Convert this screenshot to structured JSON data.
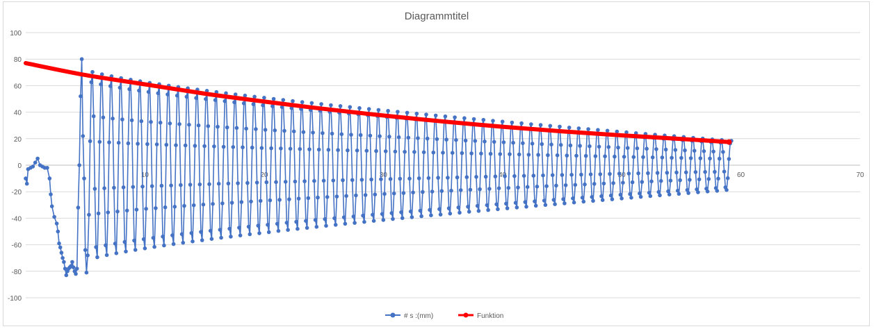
{
  "chart_data": {
    "type": "scatter",
    "title": "Diagrammtitel",
    "xlabel": "",
    "ylabel": "",
    "xlim": [
      0,
      70
    ],
    "ylim": [
      -100,
      100
    ],
    "x_ticks": [
      "10",
      "20",
      "30",
      "40",
      "50",
      "60",
      "70"
    ],
    "y_ticks": [
      "100",
      "80",
      "60",
      "40",
      "20",
      "0",
      "-20",
      "-40",
      "-60",
      "-80",
      "-100"
    ],
    "grid": true,
    "legend_position": "bottom",
    "series": [
      {
        "name": "# s :(mm)",
        "color": "#4472c4",
        "marker": "circle",
        "envelope": {
          "start_x": 4.6,
          "end_x": 59.2,
          "amp_start": 76,
          "amp_end": 19,
          "period": 0.8
        },
        "values_early": [
          [
            0.0,
            -10
          ],
          [
            0.1,
            -14
          ],
          [
            0.2,
            -3
          ],
          [
            0.4,
            -2
          ],
          [
            0.6,
            -1
          ],
          [
            0.8,
            2
          ],
          [
            1.0,
            5
          ],
          [
            1.2,
            0
          ],
          [
            1.4,
            -1
          ],
          [
            1.6,
            -2
          ],
          [
            1.8,
            -2
          ],
          [
            2.0,
            -10
          ],
          [
            2.1,
            -22
          ],
          [
            2.2,
            -31
          ],
          [
            2.4,
            -39
          ],
          [
            2.6,
            -44
          ],
          [
            2.7,
            -50
          ],
          [
            2.8,
            -59
          ],
          [
            2.9,
            -62
          ],
          [
            3.0,
            -66
          ],
          [
            3.1,
            -70
          ],
          [
            3.2,
            -73
          ],
          [
            3.3,
            -78
          ],
          [
            3.4,
            -83
          ],
          [
            3.5,
            -80
          ],
          [
            3.6,
            -78
          ],
          [
            3.7,
            -77
          ],
          [
            3.8,
            -76
          ],
          [
            3.9,
            -73
          ],
          [
            4.0,
            -77
          ],
          [
            4.1,
            -80
          ],
          [
            4.2,
            -82
          ],
          [
            4.3,
            -78
          ],
          [
            4.4,
            -32
          ],
          [
            4.5,
            0
          ],
          [
            4.6,
            52
          ],
          [
            4.7,
            80
          ],
          [
            4.8,
            22
          ],
          [
            4.9,
            -10
          ],
          [
            5.0,
            -64
          ],
          [
            5.1,
            -81
          ],
          [
            5.2,
            -68
          ]
        ]
      },
      {
        "name": "Funktion",
        "color": "#ff0000",
        "line_width": 6,
        "x": [
          0,
          5,
          10,
          15,
          20,
          25,
          30,
          35,
          40,
          45,
          50,
          55,
          59
        ],
        "values": [
          77,
          68,
          61,
          54,
          48,
          42.5,
          37.5,
          33,
          29,
          25.5,
          22.5,
          19.8,
          17.5
        ]
      }
    ]
  }
}
